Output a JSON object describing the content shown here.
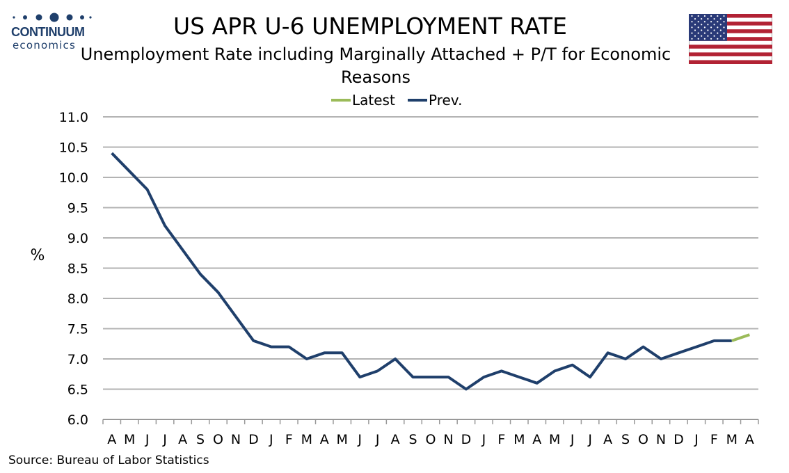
{
  "logo": {
    "word": "CONTINUUM",
    "sub": "economics"
  },
  "flag": {
    "icon": "us-flag-icon"
  },
  "source": "Source: Bureau of Labor Statistics",
  "chart_data": {
    "type": "line",
    "title": "US APR U-6 UNEMPLOYMENT RATE",
    "subtitle": "Unemployment Rate including Marginally Attached + P/T for Economic Reasons",
    "ylabel": "%",
    "xlabel": "",
    "ylim": [
      6.0,
      11.0
    ],
    "yticks": [
      "6.0",
      "6.5",
      "7.0",
      "7.5",
      "8.0",
      "8.5",
      "9.0",
      "9.5",
      "10.0",
      "10.5",
      "11.0"
    ],
    "categories": [
      "A",
      "M",
      "J",
      "J",
      "A",
      "S",
      "O",
      "N",
      "D",
      "J",
      "F",
      "M",
      "A",
      "M",
      "J",
      "J",
      "A",
      "S",
      "O",
      "N",
      "D",
      "J",
      "F",
      "M",
      "A",
      "M",
      "J",
      "J",
      "A",
      "S",
      "O",
      "N",
      "D",
      "J",
      "F",
      "M",
      "A"
    ],
    "grid": true,
    "legend_placement": "top-center",
    "series": [
      {
        "name": "Latest",
        "color": "#9bbb59",
        "values": [
          null,
          null,
          null,
          null,
          null,
          null,
          null,
          null,
          null,
          null,
          null,
          null,
          null,
          null,
          null,
          null,
          null,
          null,
          null,
          null,
          null,
          null,
          null,
          null,
          null,
          null,
          null,
          null,
          null,
          null,
          null,
          null,
          null,
          null,
          null,
          7.3,
          7.4
        ]
      },
      {
        "name": "Prev.",
        "color": "#1f3f6b",
        "values": [
          10.4,
          10.1,
          9.8,
          9.2,
          8.8,
          8.4,
          8.1,
          7.7,
          7.3,
          7.2,
          7.2,
          7.0,
          7.1,
          7.1,
          6.7,
          6.8,
          7.0,
          6.7,
          6.7,
          6.7,
          6.5,
          6.7,
          6.8,
          6.7,
          6.6,
          6.8,
          6.9,
          6.7,
          7.1,
          7.0,
          7.2,
          7.0,
          7.1,
          7.2,
          7.3,
          7.3,
          null
        ]
      }
    ]
  }
}
